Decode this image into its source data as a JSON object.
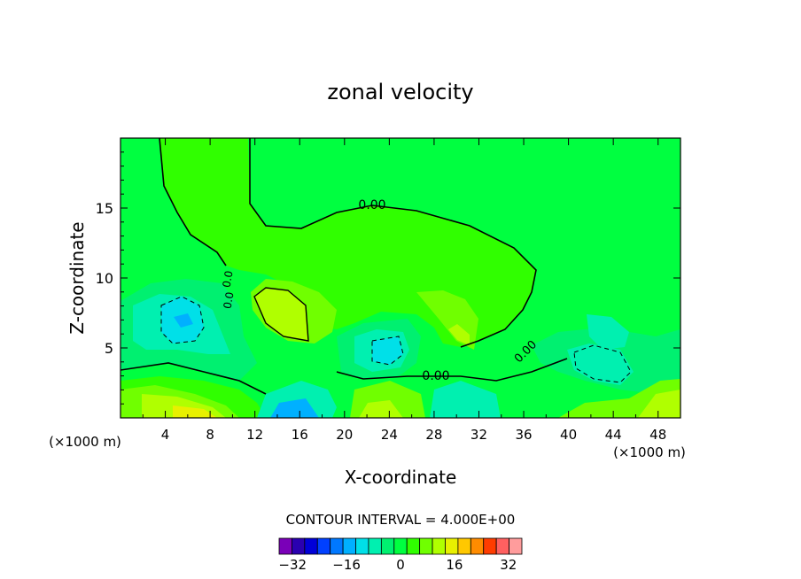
{
  "chart_data": {
    "type": "heatmap",
    "title": "zonal velocity",
    "xlabel": "X-coordinate",
    "ylabel": "Z-coordinate",
    "x_unit_left": "(×1000 m)",
    "x_unit_right": "(×1000 m)",
    "xlim": [
      0,
      50
    ],
    "ylim": [
      0,
      20
    ],
    "x_ticks": [
      4,
      8,
      12,
      16,
      20,
      24,
      28,
      32,
      36,
      40,
      44,
      48
    ],
    "y_ticks": [
      5,
      10,
      15
    ],
    "contour_interval_text": "CONTOUR INTERVAL = 4.000E+00",
    "contour_labels": [
      "0.00",
      "0.00",
      "0.0",
      "0.0",
      "0.00"
    ],
    "colorbar": {
      "levels": [
        -36,
        -32,
        -28,
        -24,
        -20,
        -16,
        -12,
        -8,
        -4,
        0,
        4,
        8,
        12,
        16,
        20,
        24,
        28,
        32,
        36
      ],
      "tick_labels": [
        "−32",
        "−16",
        "0",
        "16",
        "32"
      ],
      "tick_values": [
        -32,
        -16,
        0,
        16,
        32
      ],
      "colors": [
        "#7a00b8",
        "#2a00b0",
        "#0000d8",
        "#0040ff",
        "#0078ff",
        "#00b0ff",
        "#00e0e8",
        "#00f0b0",
        "#00f070",
        "#00ff40",
        "#30ff00",
        "#70ff00",
        "#b0ff00",
        "#e8f000",
        "#ffc800",
        "#ff8c00",
        "#ff3c00",
        "#ff6060",
        "#ff9c9c"
      ]
    },
    "background_value_color": "#00ff40"
  }
}
